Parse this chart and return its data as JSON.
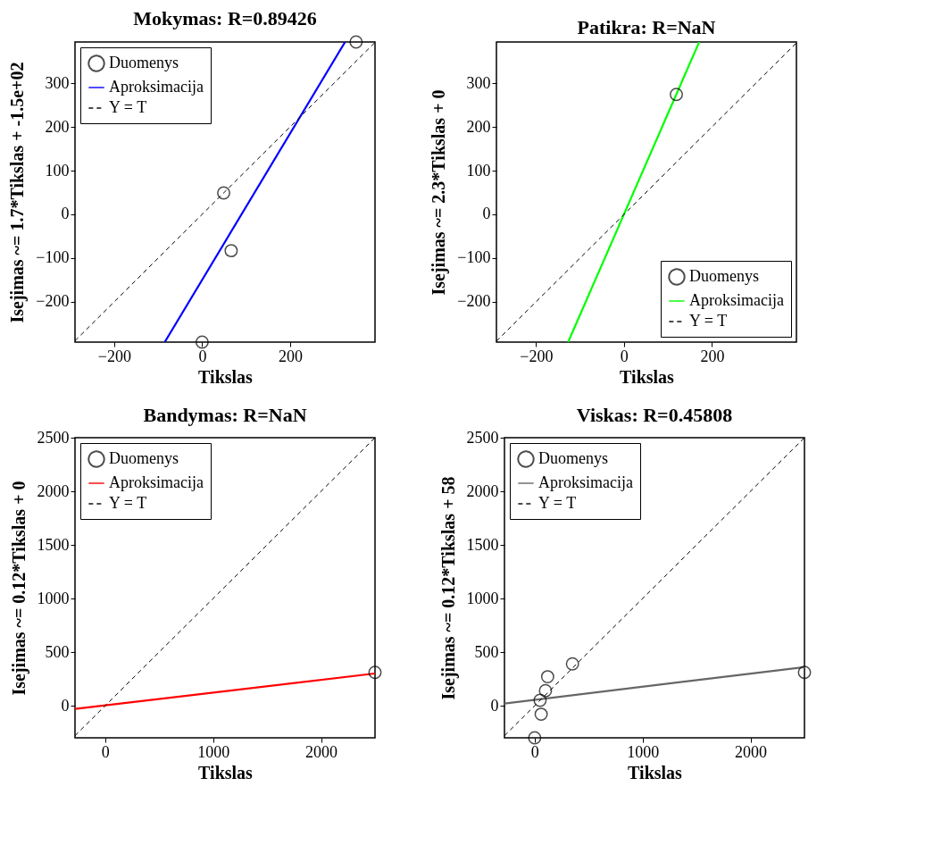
{
  "chart_data": [
    {
      "type": "scatter",
      "title": "Mokymas: R=0.89426",
      "xlabel": "Tikslas",
      "ylabel": "Isejimas ~= 1.7*Tikslas + -1.5e+02",
      "xlim": [
        -289,
        393
      ],
      "ylim": [
        -292,
        394
      ],
      "xticks": [
        -200,
        0,
        200
      ],
      "yticks": [
        -200,
        -100,
        0,
        100,
        200,
        300
      ],
      "grid": false,
      "legend": "top left",
      "series": [
        {
          "name": "Duomenys",
          "type": "scatter",
          "marker": "circle",
          "color": "#000000",
          "x": [
            0,
            49,
            66,
            350
          ],
          "values": [
            -292,
            49,
            -83,
            394
          ]
        },
        {
          "name": "Aproksimacija",
          "type": "line",
          "line_style": "solid",
          "color": "#0000ff",
          "x": [
            -85,
            325
          ],
          "values": [
            -292,
            394
          ]
        },
        {
          "name": "Y = T",
          "type": "line",
          "line_style": "dashed",
          "color": "#000000",
          "x": [
            -289,
            393
          ],
          "values": [
            -289,
            393
          ]
        }
      ]
    },
    {
      "type": "scatter",
      "title": "Patikra: R=NaN",
      "xlabel": "Tikslas",
      "ylabel": "Isejimas ~= 2.3*Tikslas + 0",
      "xlim": [
        -290,
        392
      ],
      "ylim": [
        -292,
        394
      ],
      "xticks": [
        -200,
        0,
        200
      ],
      "yticks": [
        -200,
        -100,
        0,
        100,
        200,
        300
      ],
      "grid": false,
      "legend": "bottom right",
      "series": [
        {
          "name": "Duomenys",
          "type": "scatter",
          "marker": "circle",
          "color": "#000000",
          "x": [
            119
          ],
          "values": [
            274
          ]
        },
        {
          "name": "Aproksimacija",
          "type": "line",
          "line_style": "solid",
          "color": "#00ff00",
          "x": [
            -127,
            171
          ],
          "values": [
            -292,
            394
          ]
        },
        {
          "name": "Y = T",
          "type": "line",
          "line_style": "dashed",
          "color": "#000000",
          "x": [
            -290,
            392
          ],
          "values": [
            -290,
            392
          ]
        }
      ]
    },
    {
      "type": "scatter",
      "title": "Bandymas: R=NaN",
      "xlabel": "Tikslas",
      "ylabel": "Isejimas ~= 0.12*Tikslas + 0",
      "xlim": [
        -280,
        2500
      ],
      "ylim": [
        -300,
        2500
      ],
      "xticks": [
        0,
        1000,
        2000
      ],
      "yticks": [
        0,
        500,
        1000,
        1500,
        2000,
        2500
      ],
      "grid": false,
      "legend": "top left",
      "series": [
        {
          "name": "Duomenys",
          "type": "scatter",
          "marker": "circle",
          "color": "#000000",
          "x": [
            2500
          ],
          "values": [
            310
          ]
        },
        {
          "name": "Aproksimacija",
          "type": "line",
          "line_style": "solid",
          "color": "#ff0000",
          "x": [
            -280,
            2500
          ],
          "values": [
            -30,
            300
          ]
        },
        {
          "name": "Y = T",
          "type": "line",
          "line_style": "dashed",
          "color": "#000000",
          "x": [
            -280,
            2500
          ],
          "values": [
            -280,
            2500
          ]
        }
      ]
    },
    {
      "type": "scatter",
      "title": "Viskas: R=0.45808",
      "xlabel": "Tikslas",
      "ylabel": "Isejimas ~= 0.12*Tikslas + 58",
      "xlim": [
        -280,
        2500
      ],
      "ylim": [
        -300,
        2500
      ],
      "xticks": [
        0,
        1000,
        2000
      ],
      "yticks": [
        0,
        500,
        1000,
        1500,
        2000,
        2500
      ],
      "grid": false,
      "legend": "top left",
      "series": [
        {
          "name": "Duomenys",
          "type": "scatter",
          "marker": "circle",
          "color": "#000000",
          "x": [
            0,
            60,
            50,
            100,
            120,
            350,
            2500
          ],
          "values": [
            -300,
            -80,
            50,
            140,
            270,
            390,
            310
          ]
        },
        {
          "name": "Aproksimacija",
          "type": "line",
          "line_style": "solid",
          "color": "#666666",
          "x": [
            -280,
            2500
          ],
          "values": [
            20,
            360
          ]
        },
        {
          "name": "Y = T",
          "type": "line",
          "line_style": "dashed",
          "color": "#000000",
          "x": [
            -280,
            2500
          ],
          "values": [
            -280,
            2500
          ]
        }
      ]
    }
  ]
}
